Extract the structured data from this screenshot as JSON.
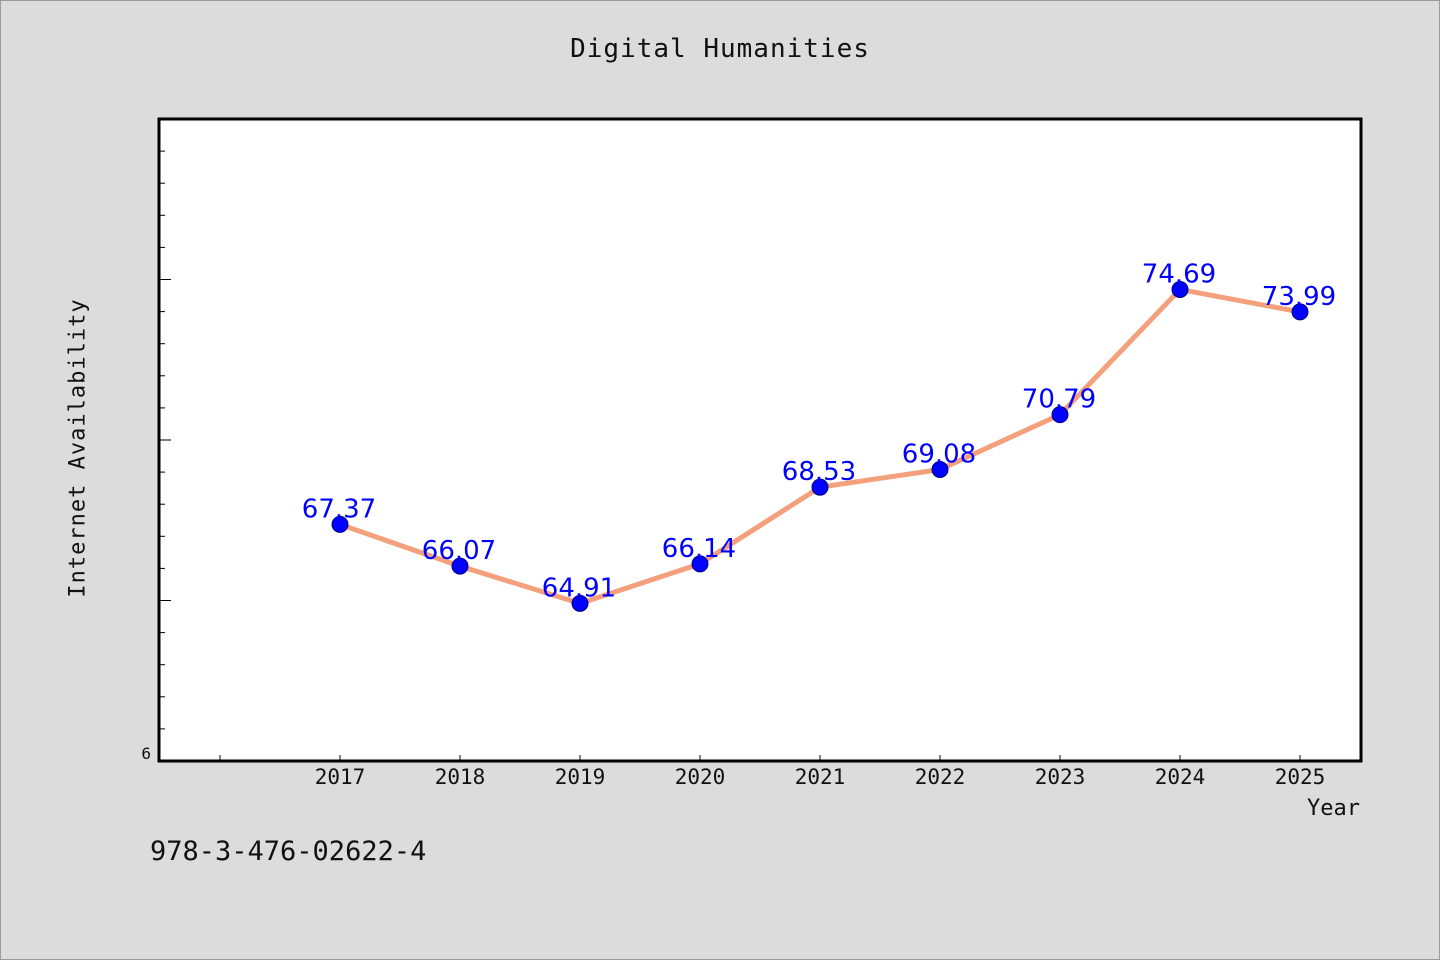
{
  "page": {
    "footer_code": "978-3-476-02622-4"
  },
  "chart_data": {
    "type": "line",
    "title": "Digital Humanities",
    "xlabel": "Year",
    "ylabel": "Internet Availability",
    "x": [
      "2017",
      "2018",
      "2019",
      "2020",
      "2021",
      "2022",
      "2023",
      "2024",
      "2025"
    ],
    "series": [
      {
        "values": [
          67.37,
          66.07,
          64.91,
          66.14,
          68.53,
          69.08,
          70.79,
          74.69,
          73.99
        ],
        "labels": [
          "67.37",
          "66.07",
          "64.91",
          "66.14",
          "68.53",
          "69.08",
          "70.79",
          "74.69",
          "73.99"
        ],
        "line_color": "#f4a07c",
        "marker_color": "#0000ff",
        "label_color": "#0000ff"
      }
    ],
    "ylim": [
      60,
      80
    ],
    "y_tick_labels": [
      "6"
    ],
    "grid": false,
    "legend": "none",
    "background": "#dcdcdc",
    "plot_background": "#ffffff"
  }
}
